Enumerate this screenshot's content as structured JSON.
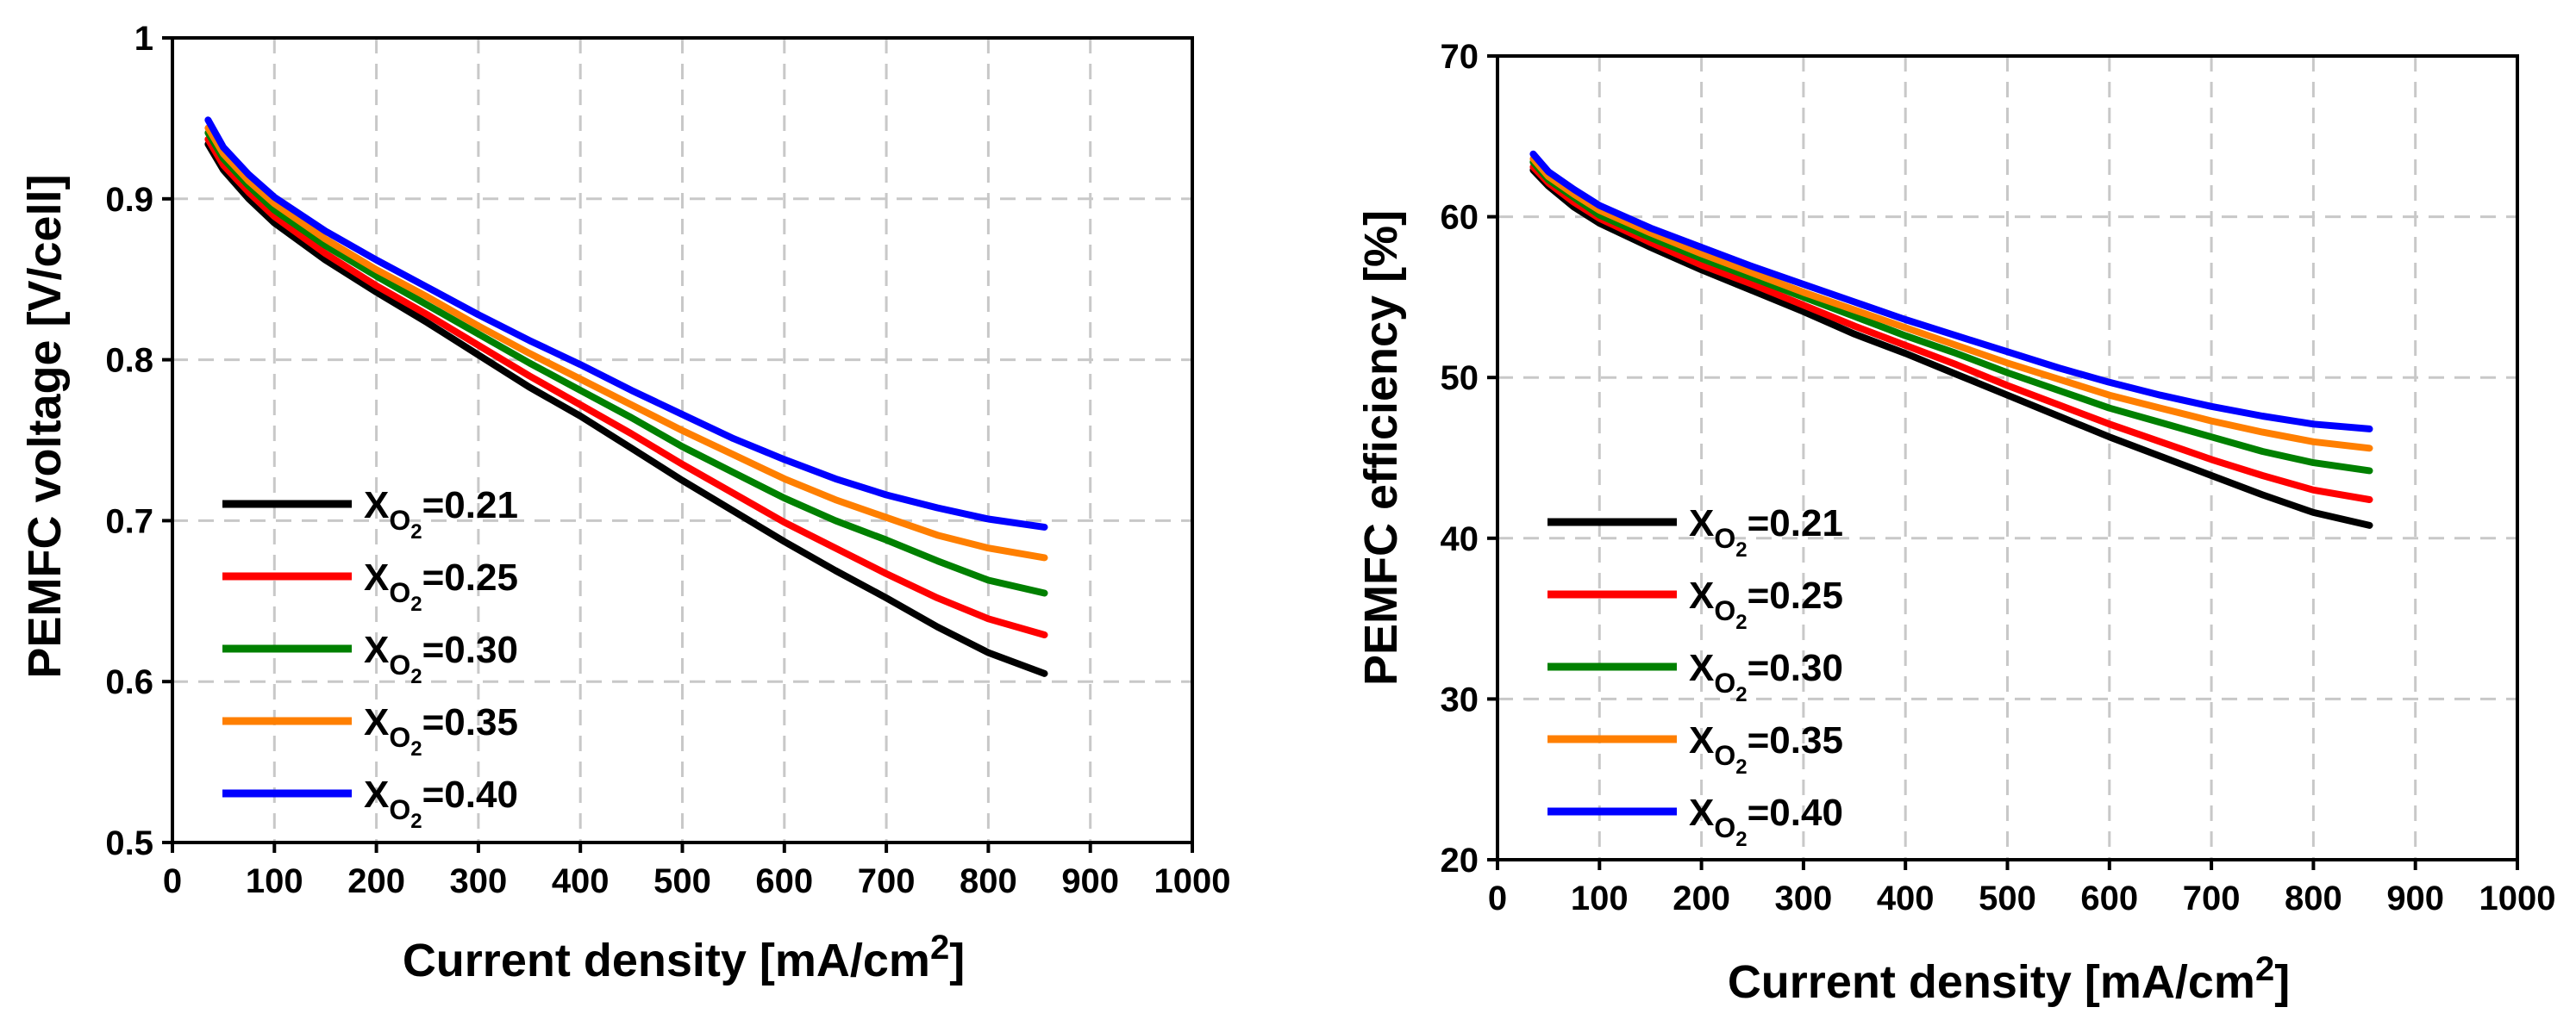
{
  "chart_data": [
    {
      "type": "line",
      "xlabel": "Current density [mA/cm",
      "xlabel_sup": "2",
      "xlabel_end": "]",
      "ylabel": "PEMFC voltage [V/cell]",
      "xlim": [
        0,
        1000
      ],
      "ylim": [
        0.5,
        1.0
      ],
      "xticks": [
        0,
        100,
        200,
        300,
        400,
        500,
        600,
        700,
        800,
        900,
        1000
      ],
      "xtick_labels": [
        "0",
        "100",
        "200",
        "300",
        "400",
        "500",
        "600",
        "700",
        "800",
        "900",
        "1000"
      ],
      "yticks": [
        0.5,
        0.6,
        0.7,
        0.8,
        0.9,
        1.0
      ],
      "ytick_labels": [
        "0.5",
        "0.6",
        "0.7",
        "0.8",
        "0.9",
        "1"
      ],
      "grid": true,
      "legend_position": "lower-left",
      "x": [
        35,
        50,
        75,
        100,
        150,
        200,
        250,
        300,
        350,
        400,
        450,
        500,
        550,
        600,
        650,
        700,
        750,
        800,
        855
      ],
      "series": [
        {
          "name": "0.21",
          "label_base": "X",
          "label_sub": "O",
          "label_sub2": "2",
          "label_value": "=0.21",
          "color": "#000000",
          "values": [
            0.934,
            0.918,
            0.9,
            0.885,
            0.862,
            0.842,
            0.823,
            0.803,
            0.783,
            0.765,
            0.745,
            0.725,
            0.706,
            0.687,
            0.669,
            0.652,
            0.634,
            0.618,
            0.605
          ]
        },
        {
          "name": "0.25",
          "label_base": "X",
          "label_sub": "O",
          "label_sub2": "2",
          "label_value": "=0.25",
          "color": "#ff0000",
          "values": [
            0.937,
            0.921,
            0.904,
            0.889,
            0.866,
            0.846,
            0.828,
            0.809,
            0.79,
            0.772,
            0.754,
            0.735,
            0.717,
            0.699,
            0.683,
            0.667,
            0.652,
            0.639,
            0.629
          ]
        },
        {
          "name": "0.30",
          "label_base": "X",
          "label_sub": "O",
          "label_sub2": "2",
          "label_value": "=0.30",
          "color": "#008000",
          "values": [
            0.941,
            0.925,
            0.908,
            0.893,
            0.871,
            0.852,
            0.834,
            0.816,
            0.798,
            0.781,
            0.764,
            0.746,
            0.73,
            0.714,
            0.7,
            0.688,
            0.675,
            0.663,
            0.655
          ]
        },
        {
          "name": "0.35",
          "label_base": "X",
          "label_sub": "O",
          "label_sub2": "2",
          "label_value": "=0.35",
          "color": "#ff7f00",
          "values": [
            0.944,
            0.928,
            0.911,
            0.897,
            0.875,
            0.856,
            0.839,
            0.821,
            0.804,
            0.788,
            0.772,
            0.756,
            0.741,
            0.726,
            0.713,
            0.702,
            0.691,
            0.683,
            0.677
          ]
        },
        {
          "name": "0.40",
          "label_base": "X",
          "label_sub": "O",
          "label_sub2": "2",
          "label_value": "=0.40",
          "color": "#0000ff",
          "values": [
            0.949,
            0.932,
            0.915,
            0.901,
            0.88,
            0.862,
            0.845,
            0.828,
            0.812,
            0.797,
            0.781,
            0.766,
            0.751,
            0.738,
            0.726,
            0.716,
            0.708,
            0.701,
            0.696
          ]
        }
      ]
    },
    {
      "type": "line",
      "xlabel": "Current density [mA/cm",
      "xlabel_sup": "2",
      "xlabel_end": "]",
      "ylabel": "PEMFC efficiency [%]",
      "xlim": [
        0,
        1000
      ],
      "ylim": [
        20,
        70
      ],
      "xticks": [
        0,
        100,
        200,
        300,
        400,
        500,
        600,
        700,
        800,
        900,
        1000
      ],
      "xtick_labels": [
        "0",
        "100",
        "200",
        "300",
        "400",
        "500",
        "600",
        "700",
        "800",
        "900",
        "1000"
      ],
      "yticks": [
        20,
        30,
        40,
        50,
        60,
        70
      ],
      "ytick_labels": [
        "20",
        "30",
        "40",
        "50",
        "60",
        "70"
      ],
      "grid": true,
      "legend_position": "lower-left",
      "x": [
        35,
        50,
        75,
        100,
        150,
        200,
        250,
        300,
        350,
        400,
        450,
        500,
        550,
        600,
        650,
        700,
        750,
        800,
        855
      ],
      "series": [
        {
          "name": "0.21",
          "label_base": "X",
          "label_sub": "O",
          "label_sub2": "2",
          "label_value": "=0.21",
          "color": "#000000",
          "values": [
            62.9,
            61.9,
            60.6,
            59.6,
            58.1,
            56.7,
            55.4,
            54.1,
            52.7,
            51.5,
            50.2,
            48.9,
            47.6,
            46.3,
            45.1,
            43.9,
            42.7,
            41.6,
            40.8
          ]
        },
        {
          "name": "0.25",
          "label_base": "X",
          "label_sub": "O",
          "label_sub2": "2",
          "label_value": "=0.25",
          "color": "#ff0000",
          "values": [
            63.1,
            62.1,
            60.9,
            59.9,
            58.4,
            57.0,
            55.8,
            54.5,
            53.2,
            52.0,
            50.8,
            49.5,
            48.3,
            47.1,
            46.0,
            44.9,
            43.9,
            43.0,
            42.4
          ]
        },
        {
          "name": "0.30",
          "label_base": "X",
          "label_sub": "O",
          "label_sub2": "2",
          "label_value": "=0.30",
          "color": "#008000",
          "values": [
            63.4,
            62.3,
            61.2,
            60.1,
            58.7,
            57.4,
            56.2,
            55.0,
            53.8,
            52.6,
            51.5,
            50.3,
            49.2,
            48.1,
            47.2,
            46.3,
            45.4,
            44.7,
            44.2
          ]
        },
        {
          "name": "0.35",
          "label_base": "X",
          "label_sub": "O",
          "label_sub2": "2",
          "label_value": "=0.35",
          "color": "#ff7f00",
          "values": [
            63.6,
            62.5,
            61.4,
            60.4,
            59.0,
            57.7,
            56.5,
            55.3,
            54.2,
            53.1,
            52.0,
            50.9,
            49.9,
            48.9,
            48.1,
            47.3,
            46.6,
            46.0,
            45.6
          ]
        },
        {
          "name": "0.40",
          "label_base": "X",
          "label_sub": "O",
          "label_sub2": "2",
          "label_value": "=0.40",
          "color": "#0000ff",
          "values": [
            63.9,
            62.8,
            61.7,
            60.7,
            59.3,
            58.1,
            56.9,
            55.8,
            54.7,
            53.6,
            52.6,
            51.6,
            50.6,
            49.7,
            48.9,
            48.2,
            47.6,
            47.1,
            46.8
          ]
        }
      ]
    }
  ]
}
